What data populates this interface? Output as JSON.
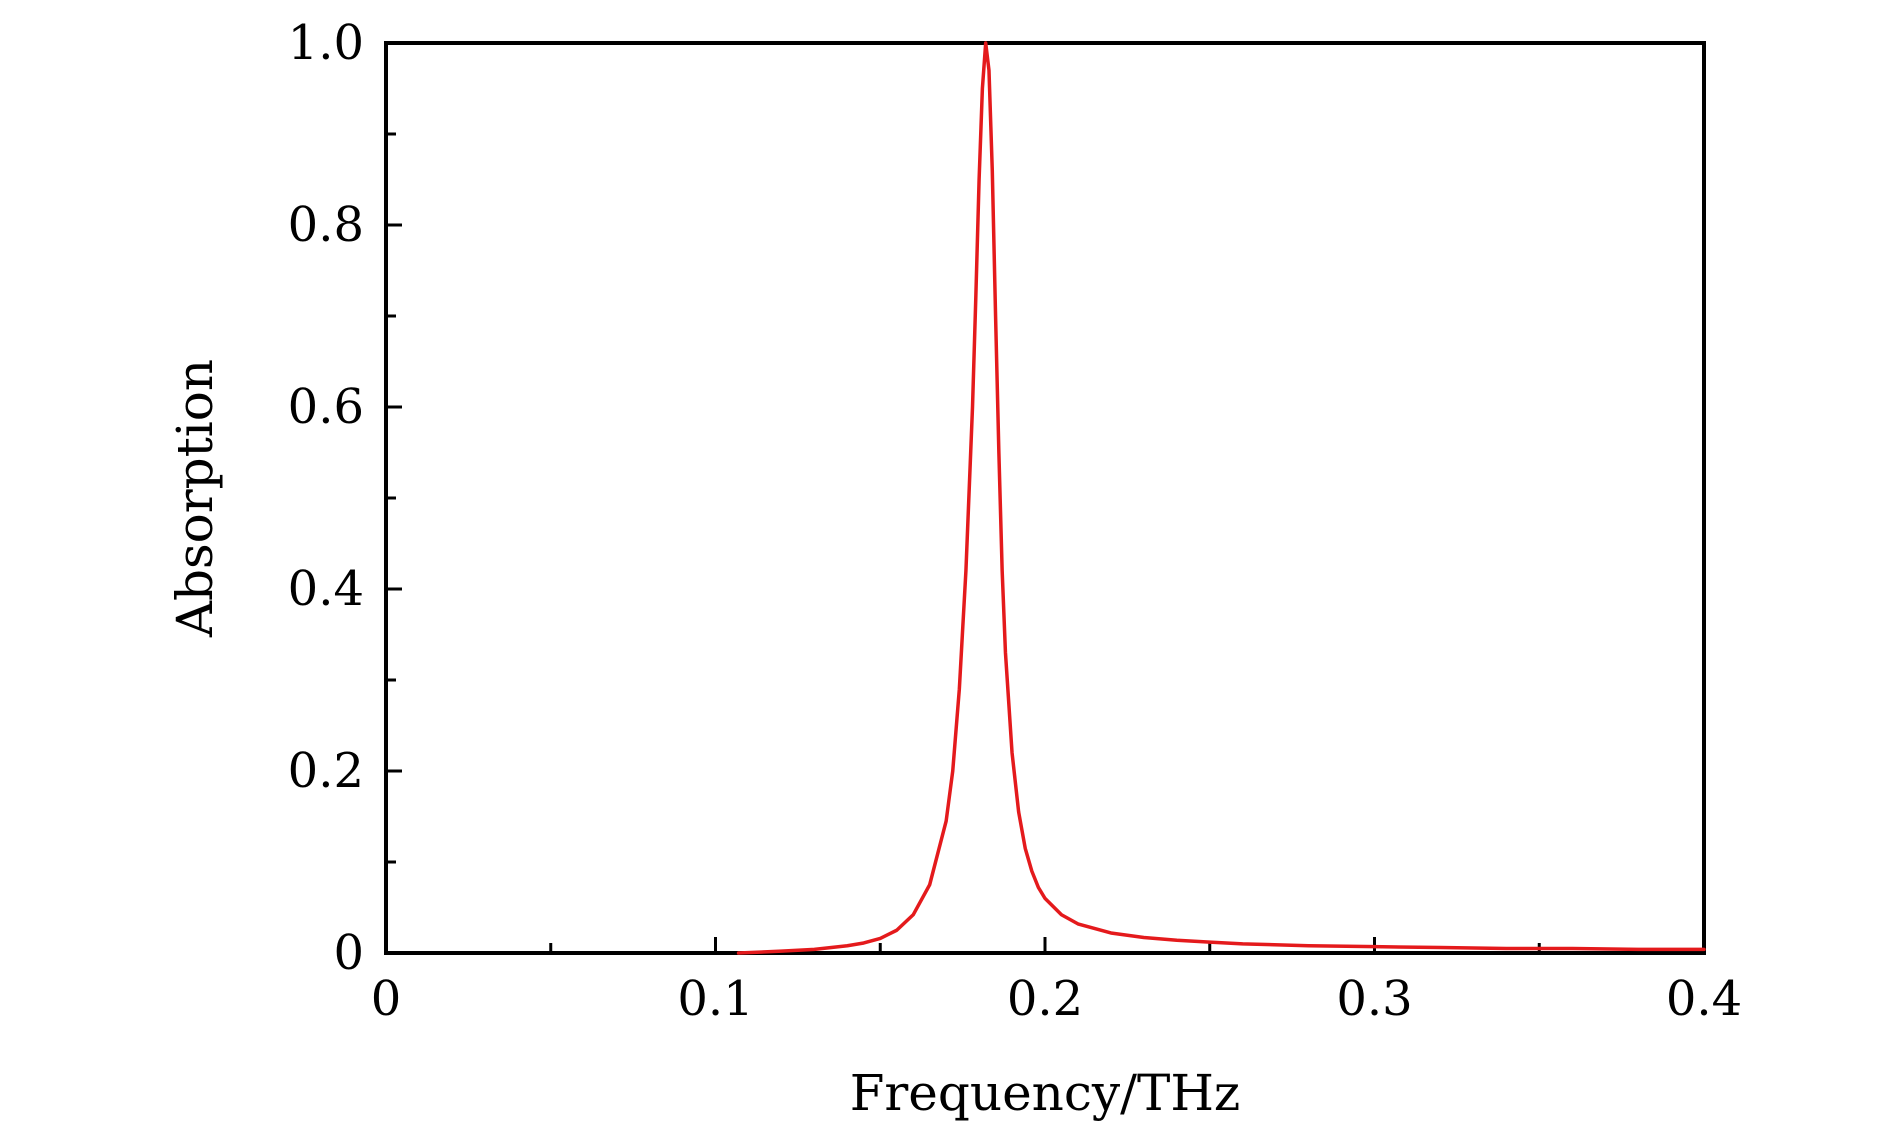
{
  "chart_data": {
    "type": "line",
    "title": "",
    "xlabel": "Frequency/THz",
    "ylabel": "Absorption",
    "xlim": [
      0,
      0.4
    ],
    "ylim": [
      0,
      1.0
    ],
    "x_ticks": [
      {
        "value": 0,
        "label": "0"
      },
      {
        "value": 0.1,
        "label": "0.1"
      },
      {
        "value": 0.2,
        "label": "0.2"
      },
      {
        "value": 0.3,
        "label": "0.3"
      },
      {
        "value": 0.4,
        "label": "0.4"
      }
    ],
    "y_ticks": [
      {
        "value": 0,
        "label": "0"
      },
      {
        "value": 0.2,
        "label": "0.2"
      },
      {
        "value": 0.4,
        "label": "0.4"
      },
      {
        "value": 0.6,
        "label": "0.6"
      },
      {
        "value": 0.8,
        "label": "0.8"
      },
      {
        "value": 1.0,
        "label": "1.0"
      }
    ],
    "x_minor_ticks": [
      0.05,
      0.15,
      0.25,
      0.35
    ],
    "y_minor_ticks": [
      0.1,
      0.3,
      0.5,
      0.7,
      0.9
    ],
    "grid": false,
    "series": [
      {
        "color": "#e41a1c",
        "x": [
          0.107,
          0.12,
          0.13,
          0.14,
          0.145,
          0.15,
          0.155,
          0.16,
          0.165,
          0.17,
          0.172,
          0.174,
          0.176,
          0.178,
          0.179,
          0.18,
          0.181,
          0.182,
          0.183,
          0.184,
          0.185,
          0.186,
          0.187,
          0.188,
          0.19,
          0.192,
          0.194,
          0.196,
          0.198,
          0.2,
          0.205,
          0.21,
          0.22,
          0.23,
          0.24,
          0.25,
          0.26,
          0.28,
          0.3,
          0.32,
          0.34,
          0.36,
          0.38,
          0.4
        ],
        "y": [
          0.0,
          0.002,
          0.004,
          0.008,
          0.011,
          0.016,
          0.025,
          0.042,
          0.075,
          0.145,
          0.2,
          0.29,
          0.42,
          0.6,
          0.72,
          0.85,
          0.95,
          1.0,
          0.97,
          0.86,
          0.7,
          0.55,
          0.42,
          0.33,
          0.22,
          0.155,
          0.115,
          0.09,
          0.072,
          0.06,
          0.042,
          0.032,
          0.022,
          0.017,
          0.014,
          0.012,
          0.01,
          0.008,
          0.007,
          0.006,
          0.005,
          0.005,
          0.004,
          0.004
        ]
      }
    ]
  }
}
